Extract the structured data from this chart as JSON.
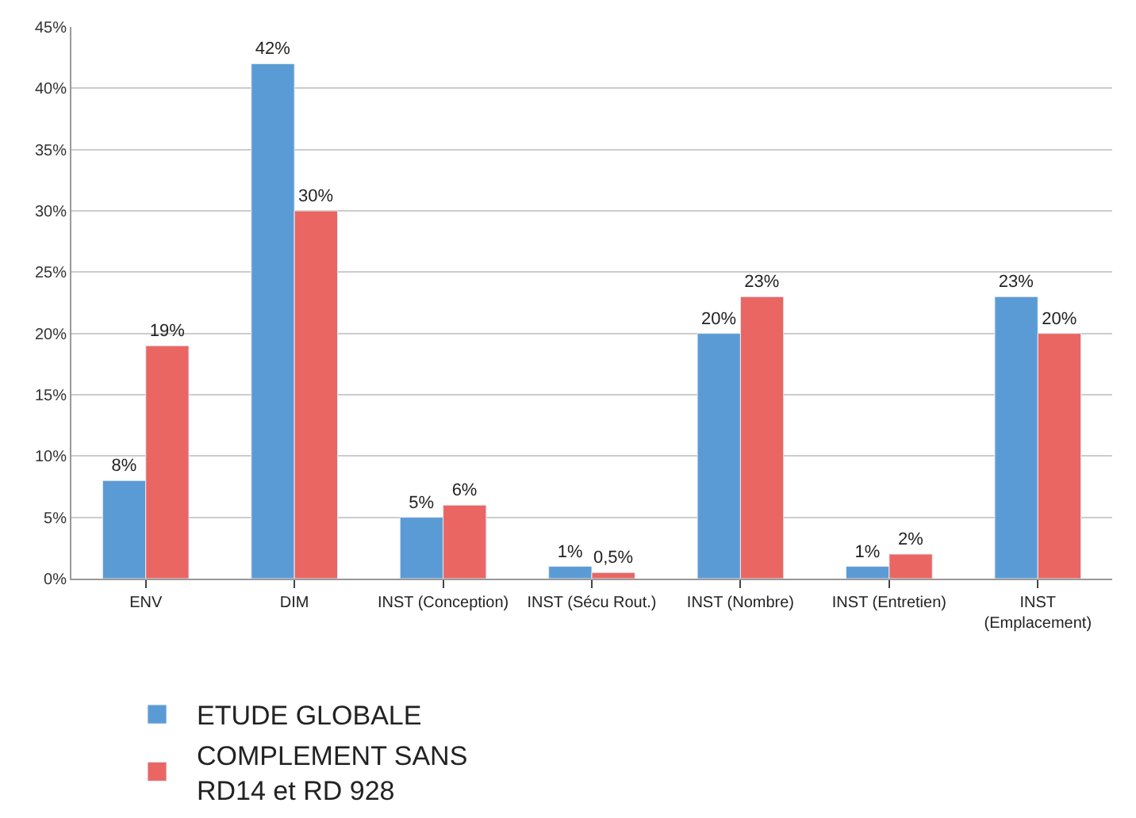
{
  "chart_data": {
    "type": "bar",
    "categories": [
      "ENV",
      "DIM",
      "INST (Conception)",
      "INST (Sécu Rout.)",
      "INST (Nombre)",
      "INST (Entretien)",
      "INST (Emplacement)"
    ],
    "series": [
      {
        "name": "ETUDE GLOBALE",
        "color": "#5b9bd5",
        "values": [
          8,
          42,
          5,
          1,
          20,
          1,
          23
        ],
        "value_labels": [
          "8%",
          "42%",
          "5%",
          "1%",
          "20%",
          "1%",
          "23%"
        ]
      },
      {
        "name": "COMPLEMENT SANS RD14 et RD 928",
        "color": "#ea6662",
        "values": [
          19,
          30,
          6,
          0.5,
          23,
          2,
          20
        ],
        "value_labels": [
          "19%",
          "30%",
          "6%",
          "0,5%",
          "23%",
          "2%",
          "20%"
        ]
      }
    ],
    "ylim": [
      0,
      45
    ],
    "yticks": [
      {
        "value": 0,
        "label": "0%"
      },
      {
        "value": 5,
        "label": "5%"
      },
      {
        "value": 10,
        "label": "10%"
      },
      {
        "value": 15,
        "label": "15%"
      },
      {
        "value": 20,
        "label": "20%"
      },
      {
        "value": 25,
        "label": "25%"
      },
      {
        "value": 30,
        "label": "30%"
      },
      {
        "value": 35,
        "label": "35%"
      },
      {
        "value": 40,
        "label": "40%"
      },
      {
        "value": 45,
        "label": "45%"
      }
    ],
    "grid": "y",
    "legend": "bottom"
  }
}
